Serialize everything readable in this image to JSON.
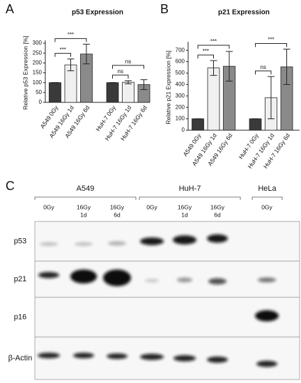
{
  "chart_data": [
    {
      "type": "bar",
      "panel": "A",
      "title": "p53 Expression",
      "ylabel": "Relative p53 Expression [%]",
      "categories": [
        "A549 0Gy",
        "A549 16Gy 1d",
        "A549 16Gy 6d",
        "HuH-7 0Gy",
        "HuH-7 16Gy 1d",
        "HuH-7 16Gy 6d"
      ],
      "values": [
        100,
        190,
        245,
        100,
        102,
        90
      ],
      "errors": [
        0,
        30,
        50,
        0,
        8,
        25
      ],
      "colors": [
        "#3a3a3a",
        "#f0f0f0",
        "#8a8a8a",
        "#3a3a3a",
        "#f0f0f0",
        "#8a8a8a"
      ],
      "ylim": [
        0,
        300
      ],
      "yticks": [
        0,
        50,
        100,
        150,
        200,
        250,
        300
      ],
      "comparisons": [
        {
          "label": "***",
          "groups": [
            0,
            1
          ]
        },
        {
          "label": "***",
          "groups": [
            0,
            2
          ]
        },
        {
          "label": "ns",
          "groups": [
            3,
            4
          ]
        },
        {
          "label": "ns",
          "groups": [
            3,
            5
          ]
        }
      ]
    },
    {
      "type": "bar",
      "panel": "B",
      "title": "p21 Expression",
      "ylabel": "Relative p21 Expression [%]",
      "categories": [
        "A549 0Gy",
        "A549 16Gy 1d",
        "A549 16Gy 6d",
        "HuH-7 0Gy",
        "HuH-7 16Gy 1d",
        "HuH-7 16Gy 6d"
      ],
      "values": [
        100,
        545,
        560,
        100,
        285,
        555
      ],
      "errors": [
        0,
        65,
        130,
        0,
        185,
        155
      ],
      "colors": [
        "#3a3a3a",
        "#f0f0f0",
        "#8a8a8a",
        "#3a3a3a",
        "#f0f0f0",
        "#8a8a8a"
      ],
      "ylim": [
        0,
        750
      ],
      "yticks": [
        0,
        100,
        200,
        300,
        400,
        500,
        600,
        700
      ],
      "comparisons": [
        {
          "label": "***",
          "groups": [
            0,
            1
          ]
        },
        {
          "label": "***",
          "groups": [
            0,
            2
          ]
        },
        {
          "label": "ns",
          "groups": [
            3,
            4
          ]
        },
        {
          "label": "***",
          "groups": [
            3,
            5
          ]
        }
      ]
    }
  ],
  "blot": {
    "panel": "C",
    "groups": [
      "A549",
      "HuH-7",
      "HeLa"
    ],
    "lanes": [
      [
        "0Gy"
      ],
      [
        "16Gy",
        "1d"
      ],
      [
        "16Gy",
        "6d"
      ],
      [
        "0Gy"
      ],
      [
        "16Gy",
        "1d"
      ],
      [
        "16Gy",
        "6d"
      ],
      [
        "0Gy"
      ]
    ],
    "rows": [
      "p53",
      "p21",
      "p16",
      "β-Actin"
    ]
  }
}
